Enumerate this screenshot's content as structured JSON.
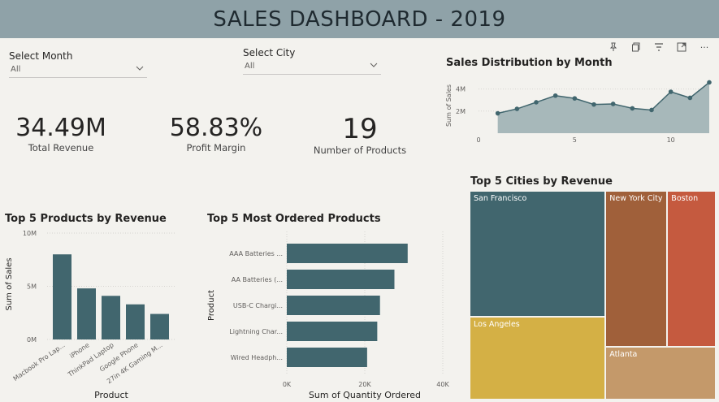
{
  "header": {
    "title": "SALES DASHBOARD - 2019"
  },
  "toolbar": {
    "icons": [
      "pin-icon",
      "copy-icon",
      "filter-icon",
      "focus-mode-icon",
      "more-options-icon"
    ],
    "more": "···"
  },
  "slicers": {
    "month": {
      "label": "Select Month",
      "value": "All"
    },
    "city": {
      "label": "Select City",
      "value": "All"
    }
  },
  "kpis": {
    "revenue": {
      "value": "34.49M",
      "caption": "Total Revenue"
    },
    "margin": {
      "value": "58.83%",
      "caption": "Profit Margin"
    },
    "products": {
      "value": "19",
      "caption": "Number of Products"
    }
  },
  "colors": {
    "accent": "#41666e",
    "area": "#a7b8ba",
    "gold": "#d4b045",
    "brown": "#a0603a",
    "red": "#c55a3f",
    "tan": "#c4996a"
  },
  "chart_data": [
    {
      "id": "monthly",
      "type": "area",
      "title": "Sales Distribution by Month",
      "ylabel": "Sum of Sales",
      "x": [
        1,
        2,
        3,
        4,
        5,
        6,
        7,
        8,
        9,
        10,
        11,
        12
      ],
      "values": [
        1.8,
        2.2,
        2.8,
        3.4,
        3.15,
        2.6,
        2.65,
        2.25,
        2.1,
        3.75,
        3.2,
        4.6
      ],
      "xlim": [
        0,
        12
      ],
      "ylim": [
        0,
        5
      ],
      "xticks": [
        {
          "v": 0,
          "t": "0"
        },
        {
          "v": 5,
          "t": "5"
        },
        {
          "v": 10,
          "t": "10"
        }
      ],
      "yticks": [
        {
          "v": 2,
          "t": "2M"
        },
        {
          "v": 4,
          "t": "4M"
        }
      ]
    },
    {
      "id": "products",
      "type": "bar",
      "title": "Top 5 Products by Revenue",
      "xlabel": "Product",
      "ylabel": "Sum of Sales",
      "categories": [
        "Macbook Pro Lap...",
        "iPhone",
        "ThinkPad Laptop",
        "Google Phone",
        "27in 4K Gaming M..."
      ],
      "values": [
        8.0,
        4.8,
        4.1,
        3.3,
        2.4
      ],
      "ylim": [
        0,
        10
      ],
      "yticks": [
        {
          "v": 0,
          "t": "0M"
        },
        {
          "v": 5,
          "t": "5M"
        },
        {
          "v": 10,
          "t": "10M"
        }
      ]
    },
    {
      "id": "ordered",
      "type": "bar",
      "orientation": "horizontal",
      "title": "Top 5 Most Ordered Products",
      "xlabel": "Sum of Quantity Ordered",
      "ylabel": "Product",
      "categories": [
        "AAA Batteries ...",
        "AA Batteries (...",
        "USB-C Chargi...",
        "Lightning Char...",
        "Wired Headph..."
      ],
      "values": [
        31000,
        27600,
        23900,
        23200,
        20600
      ],
      "xlim": [
        0,
        40000
      ],
      "xticks": [
        {
          "v": 0,
          "t": "0K"
        },
        {
          "v": 20000,
          "t": "20K"
        },
        {
          "v": 40000,
          "t": "40K"
        }
      ]
    },
    {
      "id": "cities",
      "type": "treemap",
      "title": "Top 5 Cities by Revenue",
      "categories": [
        "San Francisco",
        "Los Angeles",
        "New York City",
        "Boston",
        "Atlanta"
      ],
      "values": [
        8.26,
        5.45,
        4.66,
        3.66,
        2.8
      ]
    }
  ]
}
